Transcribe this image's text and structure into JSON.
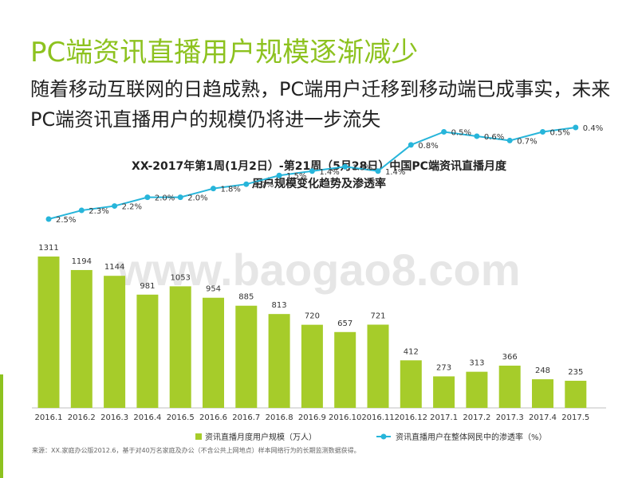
{
  "slide": {
    "title": "PC端资讯直播用户规模逐渐减少",
    "subtitle": "随着移动互联网的日趋成熟，PC端用户迁移到移动端已成事实，未来PC端资讯直播用户的规模仍将进一步流失",
    "source": "来源：XX.家庭办公版2012.6，基于对40万名家庭及办公（不含公共上网地点）样本网络行为的长期监测数据获得。",
    "watermark": "www.baogao8.com"
  },
  "colors": {
    "bar": "#a6cc2a",
    "line": "#27b5da",
    "title": "#8dc21f",
    "accent": "#8dc21f"
  },
  "chart_data": {
    "type": "bar",
    "title": "XX-2017年第1周(1月2日）-第21周（5月28日）中国PC端资讯直播月度用户规模变化趋势及渗透率",
    "title_lines": [
      "XX-2017年第1周(1月2日）-第21周（5月28日）中国PC端资讯直播月度",
      "用户规模变化趋势及渗透率"
    ],
    "categories": [
      "2016.1",
      "2016.2",
      "2016.3",
      "2016.4",
      "2016.5",
      "2016.6",
      "2016.7",
      "2016.8",
      "2016.9",
      "2016.10",
      "2016.11",
      "2016.12",
      "2017.1",
      "2017.2",
      "2017.3",
      "2017.4",
      "2017.5"
    ],
    "category_labels": [
      "2016.1",
      "2016.2",
      "2016.3",
      "2016.4",
      "2016.5",
      "2016.6",
      "2016.7",
      "2016.8",
      "2016.9",
      "2016.10",
      "2016.11",
      "2016.12",
      "2017.1",
      "2017.2",
      "2017.3",
      "2017.4",
      "2017.5"
    ],
    "series": [
      {
        "name": "资讯直播月度用户规模（万人）",
        "type": "bar",
        "values": [
          1311,
          1194,
          1144,
          981,
          1053,
          954,
          885,
          813,
          720,
          657,
          721,
          412,
          273,
          313,
          366,
          248,
          235
        ]
      },
      {
        "name": "资讯直播用户在整体网民中的渗透率（%）",
        "type": "line",
        "values": [
          2.5,
          2.3,
          2.2,
          2.0,
          2.0,
          1.8,
          1.7,
          1.5,
          1.4,
          1.3,
          1.4,
          0.8,
          0.5,
          0.6,
          0.7,
          0.5,
          0.4
        ],
        "labels": [
          "2.5%",
          "2.3%",
          "2.2%",
          "2.0%",
          "2.0%",
          "1.8%",
          "1.7%",
          "1.5%",
          "1.4%",
          "1.3%",
          "1.4%",
          "0.8%",
          "0.5%",
          "0.6%",
          "0.7%",
          "0.5%",
          "0.4%"
        ]
      }
    ],
    "legend_position": "bottom",
    "grid": false
  }
}
